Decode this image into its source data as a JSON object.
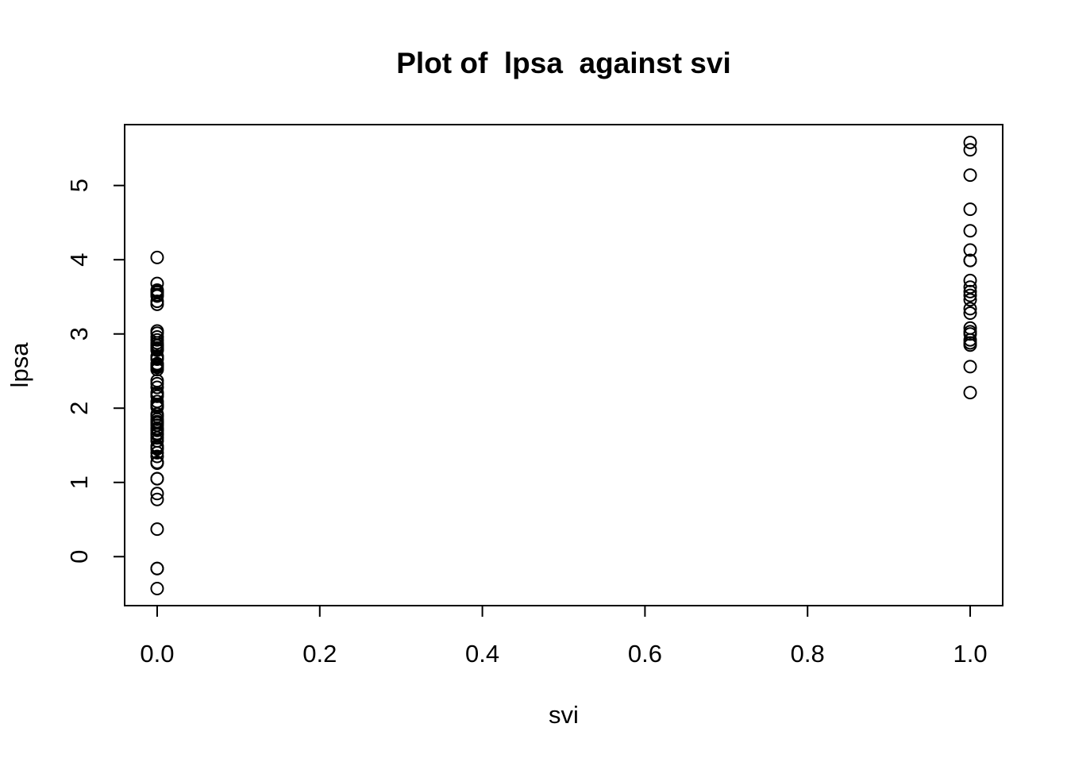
{
  "chart_data": {
    "type": "scatter",
    "title": "Plot of  lpsa  against svi",
    "xlabel": "svi",
    "ylabel": "lpsa",
    "xlim": [
      -0.04,
      1.04
    ],
    "ylim": [
      -0.66,
      5.82
    ],
    "xticks": [
      0.0,
      0.2,
      0.4,
      0.6,
      0.8,
      1.0
    ],
    "xtick_labels": [
      "0.0",
      "0.2",
      "0.4",
      "0.6",
      "0.8",
      "1.0"
    ],
    "yticks": [
      0,
      1,
      2,
      3,
      4,
      5
    ],
    "ytick_labels": [
      "0",
      "1",
      "2",
      "3",
      "4",
      "5"
    ],
    "grid": false,
    "marker": "open-circle",
    "colors": {
      "points": "#000000",
      "axes": "#000000",
      "background": "#ffffff"
    },
    "points": [
      {
        "x": 0,
        "y": -0.43
      },
      {
        "x": 0,
        "y": -0.16
      },
      {
        "x": 0,
        "y": -0.16
      },
      {
        "x": 0,
        "y": 0.37
      },
      {
        "x": 0,
        "y": 0.77
      },
      {
        "x": 0,
        "y": 0.85
      },
      {
        "x": 0,
        "y": 1.05
      },
      {
        "x": 0,
        "y": 1.05
      },
      {
        "x": 0,
        "y": 1.26
      },
      {
        "x": 0,
        "y": 1.27
      },
      {
        "x": 0,
        "y": 1.27
      },
      {
        "x": 0,
        "y": 1.35
      },
      {
        "x": 0,
        "y": 1.4
      },
      {
        "x": 0,
        "y": 1.45
      },
      {
        "x": 0,
        "y": 1.47
      },
      {
        "x": 0,
        "y": 1.49
      },
      {
        "x": 0,
        "y": 1.56
      },
      {
        "x": 0,
        "y": 1.6
      },
      {
        "x": 0,
        "y": 1.64
      },
      {
        "x": 0,
        "y": 1.66
      },
      {
        "x": 0,
        "y": 1.7
      },
      {
        "x": 0,
        "y": 1.71
      },
      {
        "x": 0,
        "y": 1.73
      },
      {
        "x": 0,
        "y": 1.77
      },
      {
        "x": 0,
        "y": 1.8
      },
      {
        "x": 0,
        "y": 1.82
      },
      {
        "x": 0,
        "y": 1.85
      },
      {
        "x": 0,
        "y": 1.89
      },
      {
        "x": 0,
        "y": 1.92
      },
      {
        "x": 0,
        "y": 2.01
      },
      {
        "x": 0,
        "y": 2.03
      },
      {
        "x": 0,
        "y": 2.05
      },
      {
        "x": 0,
        "y": 2.09
      },
      {
        "x": 0,
        "y": 2.16
      },
      {
        "x": 0,
        "y": 2.19
      },
      {
        "x": 0,
        "y": 2.21
      },
      {
        "x": 0,
        "y": 2.28
      },
      {
        "x": 0,
        "y": 2.33
      },
      {
        "x": 0,
        "y": 2.37
      },
      {
        "x": 0,
        "y": 2.52
      },
      {
        "x": 0,
        "y": 2.55
      },
      {
        "x": 0,
        "y": 2.57
      },
      {
        "x": 0,
        "y": 2.59
      },
      {
        "x": 0,
        "y": 2.6
      },
      {
        "x": 0,
        "y": 2.66
      },
      {
        "x": 0,
        "y": 2.68
      },
      {
        "x": 0,
        "y": 2.69
      },
      {
        "x": 0,
        "y": 2.7
      },
      {
        "x": 0,
        "y": 2.78
      },
      {
        "x": 0,
        "y": 2.79
      },
      {
        "x": 0,
        "y": 2.81
      },
      {
        "x": 0,
        "y": 2.84
      },
      {
        "x": 0,
        "y": 2.85
      },
      {
        "x": 0,
        "y": 2.88
      },
      {
        "x": 0,
        "y": 2.92
      },
      {
        "x": 0,
        "y": 2.96
      },
      {
        "x": 0,
        "y": 3.01
      },
      {
        "x": 0,
        "y": 3.04
      },
      {
        "x": 0,
        "y": 3.4
      },
      {
        "x": 0,
        "y": 3.44
      },
      {
        "x": 0,
        "y": 3.51
      },
      {
        "x": 0,
        "y": 3.53
      },
      {
        "x": 0,
        "y": 3.56
      },
      {
        "x": 0,
        "y": 3.57
      },
      {
        "x": 0,
        "y": 3.59
      },
      {
        "x": 0,
        "y": 3.68
      },
      {
        "x": 0,
        "y": 4.03
      },
      {
        "x": 1,
        "y": 2.21
      },
      {
        "x": 1,
        "y": 2.56
      },
      {
        "x": 1,
        "y": 2.85
      },
      {
        "x": 1,
        "y": 2.88
      },
      {
        "x": 1,
        "y": 2.92
      },
      {
        "x": 1,
        "y": 3.0
      },
      {
        "x": 1,
        "y": 3.03
      },
      {
        "x": 1,
        "y": 3.08
      },
      {
        "x": 1,
        "y": 3.28
      },
      {
        "x": 1,
        "y": 3.34
      },
      {
        "x": 1,
        "y": 3.46
      },
      {
        "x": 1,
        "y": 3.52
      },
      {
        "x": 1,
        "y": 3.57
      },
      {
        "x": 1,
        "y": 3.63
      },
      {
        "x": 1,
        "y": 3.72
      },
      {
        "x": 1,
        "y": 3.99
      },
      {
        "x": 1,
        "y": 3.99
      },
      {
        "x": 1,
        "y": 4.13
      },
      {
        "x": 1,
        "y": 4.39
      },
      {
        "x": 1,
        "y": 4.68
      },
      {
        "x": 1,
        "y": 5.14
      },
      {
        "x": 1,
        "y": 5.48
      },
      {
        "x": 1,
        "y": 5.58
      }
    ]
  }
}
